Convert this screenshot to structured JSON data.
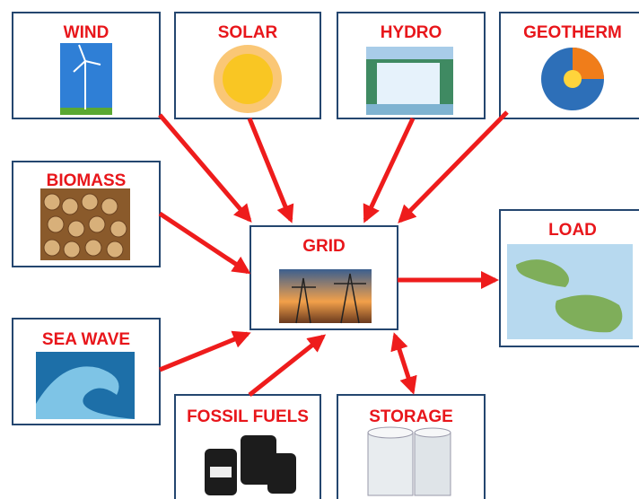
{
  "nodes": [
    {
      "label": "WIND"
    },
    {
      "label": "SOLAR"
    },
    {
      "label": "HYDRO"
    },
    {
      "label": "GEOTHERM"
    },
    {
      "label": "BIOMASS"
    },
    {
      "label": "GRID"
    },
    {
      "label": "LOAD"
    },
    {
      "label": "SEA WAVE"
    },
    {
      "label": "FOSSIL FUELS"
    },
    {
      "label": "STORAGE"
    }
  ]
}
